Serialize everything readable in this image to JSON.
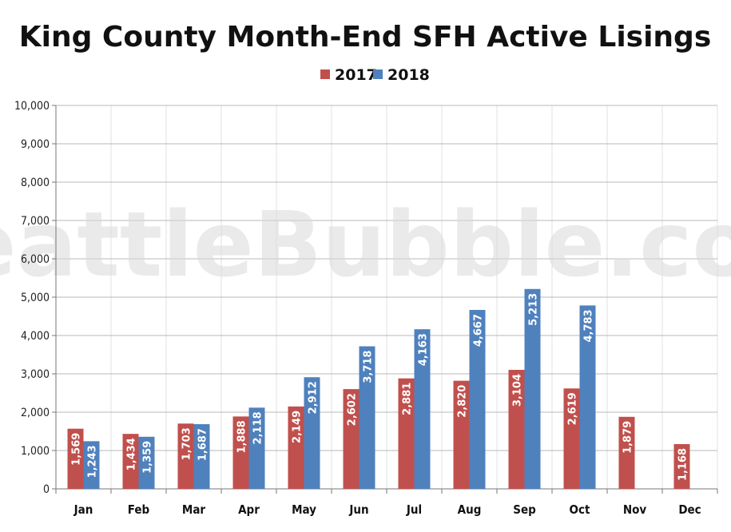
{
  "chart_data": {
    "type": "bar",
    "title": "King County Month-End SFH Active Lisings",
    "watermark": "SeattleBubble.com",
    "categories": [
      "Jan",
      "Feb",
      "Mar",
      "Apr",
      "May",
      "Jun",
      "Jul",
      "Aug",
      "Sep",
      "Oct",
      "Nov",
      "Dec"
    ],
    "series": [
      {
        "name": "2017",
        "color": "#c0504d",
        "values": [
          1569,
          1434,
          1703,
          1888,
          2149,
          2602,
          2881,
          2820,
          3104,
          2619,
          1879,
          1168
        ],
        "labels": [
          "1,569",
          "1,434",
          "1,703",
          "1,888",
          "2,149",
          "2,602",
          "2,881",
          "2,820",
          "3,104",
          "2,619",
          "1,879",
          "1,168"
        ]
      },
      {
        "name": "2018",
        "color": "#4f81bd",
        "values": [
          1243,
          1359,
          1687,
          2118,
          2912,
          3718,
          4163,
          4667,
          5213,
          4783,
          null,
          null
        ],
        "labels": [
          "1,243",
          "1,359",
          "1,687",
          "2,118",
          "2,912",
          "3,718",
          "4,163",
          "4,667",
          "5,213",
          "4,783",
          "",
          ""
        ]
      }
    ],
    "ylim": [
      0,
      10000
    ],
    "yticks": [
      0,
      1000,
      2000,
      3000,
      4000,
      5000,
      6000,
      7000,
      8000,
      9000,
      10000
    ],
    "ytick_labels": [
      "0",
      "1,000",
      "2,000",
      "3,000",
      "4,000",
      "5,000",
      "6,000",
      "7,000",
      "8,000",
      "9,000",
      "10,000"
    ],
    "grid": true,
    "legend_position": "top-center",
    "xlabel": "",
    "ylabel": ""
  }
}
